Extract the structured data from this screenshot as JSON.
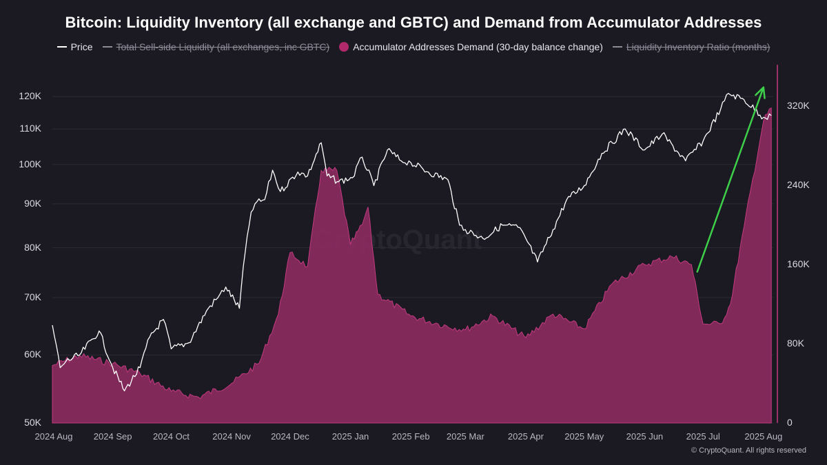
{
  "chart_data": {
    "type": "line",
    "title": "Bitcoin: Liquidity Inventory (all exchange and GBTC) and Demand from Accumulator Addresses",
    "legend": [
      {
        "name": "Price",
        "kind": "line",
        "color": "#ffffff",
        "hidden": false
      },
      {
        "name": "Total Sell-side Liquidity (all exchanges, inc GBTC)",
        "kind": "line",
        "color": "#8e8b99",
        "hidden": true
      },
      {
        "name": "Accumulator Addresses Demand (30-day balance change)",
        "kind": "dot",
        "color": "#b02a6b",
        "hidden": false
      },
      {
        "name": "Liquidity Inventory Ratio (months)",
        "kind": "line",
        "color": "#8e8b99",
        "hidden": true
      }
    ],
    "legend_position": "top-center",
    "x_tick_labels": [
      "2024 Aug",
      "2024 Sep",
      "2024 Oct",
      "2024 Nov",
      "2024 Dec",
      "2025 Jan",
      "2025 Feb",
      "2025 Mar",
      "2025 Apr",
      "2025 May",
      "2025 Jun",
      "2025 Jul",
      "2025 Aug"
    ],
    "y_left": {
      "scale": "log",
      "range": [
        50000,
        125000
      ],
      "tick_values": [
        50000,
        60000,
        70000,
        80000,
        90000,
        100000,
        110000,
        120000
      ],
      "tick_labels": [
        "50K",
        "60K",
        "70K",
        "80K",
        "90K",
        "100K",
        "110K",
        "120K"
      ]
    },
    "y_right": {
      "scale": "linear",
      "range": [
        0,
        345000
      ],
      "tick_values": [
        0,
        80000,
        160000,
        240000,
        320000
      ],
      "tick_labels": [
        "0",
        "80K",
        "160K",
        "240K",
        "320K"
      ]
    },
    "grid": "horizontal",
    "colors": {
      "price": "#ffffff",
      "demand_fill": "#8a2a5e",
      "demand_edge": "#c23a80",
      "arrow": "#3ecf4a",
      "background": "#1b1a22"
    },
    "series": [
      {
        "name": "Price",
        "axis": "left",
        "x": [
          "2024-08-01",
          "2024-08-05",
          "2024-08-08",
          "2024-08-15",
          "2024-08-25",
          "2024-09-01",
          "2024-09-07",
          "2024-09-15",
          "2024-09-20",
          "2024-09-27",
          "2024-10-01",
          "2024-10-10",
          "2024-10-20",
          "2024-10-25",
          "2024-10-29",
          "2024-11-05",
          "2024-11-07",
          "2024-11-11",
          "2024-11-13",
          "2024-11-18",
          "2024-11-22",
          "2024-11-26",
          "2024-12-05",
          "2024-12-10",
          "2024-12-17",
          "2024-12-20",
          "2024-12-26",
          "2025-01-02",
          "2025-01-07",
          "2025-01-13",
          "2025-01-20",
          "2025-01-27",
          "2025-02-01",
          "2025-02-10",
          "2025-02-20",
          "2025-02-26",
          "2025-03-01",
          "2025-03-10",
          "2025-03-20",
          "2025-03-28",
          "2025-04-01",
          "2025-04-07",
          "2025-04-15",
          "2025-04-22",
          "2025-05-01",
          "2025-05-10",
          "2025-05-22",
          "2025-06-01",
          "2025-06-10",
          "2025-06-22",
          "2025-07-01",
          "2025-07-10",
          "2025-07-14",
          "2025-07-22",
          "2025-08-01",
          "2025-08-05"
        ],
        "y": [
          65000,
          58000,
          59000,
          60000,
          64000,
          58000,
          54500,
          58000,
          63000,
          66000,
          61000,
          62000,
          68000,
          70000,
          72000,
          68000,
          76000,
          88000,
          90000,
          91000,
          98500,
          93000,
          98000,
          97000,
          106000,
          97000,
          95500,
          96500,
          102000,
          94500,
          104000,
          101000,
          100500,
          98000,
          96000,
          85000,
          84000,
          82000,
          85000,
          84500,
          82000,
          77000,
          84000,
          91000,
          94500,
          103000,
          110000,
          104000,
          108500,
          101000,
          106500,
          116000,
          121000,
          119000,
          113500,
          114000
        ]
      },
      {
        "name": "Accumulator Addresses Demand (30-day balance change)",
        "axis": "right",
        "x": [
          "2024-08-01",
          "2024-08-15",
          "2024-09-01",
          "2024-09-15",
          "2024-10-01",
          "2024-10-15",
          "2024-11-01",
          "2024-11-15",
          "2024-11-25",
          "2024-12-01",
          "2024-12-10",
          "2024-12-17",
          "2024-12-25",
          "2025-01-01",
          "2025-01-07",
          "2025-01-10",
          "2025-01-15",
          "2025-02-01",
          "2025-02-15",
          "2025-03-01",
          "2025-03-15",
          "2025-04-01",
          "2025-04-15",
          "2025-05-01",
          "2025-05-15",
          "2025-06-01",
          "2025-06-15",
          "2025-06-25",
          "2025-07-01",
          "2025-07-10",
          "2025-07-15",
          "2025-07-22",
          "2025-08-01",
          "2025-08-05"
        ],
        "y": [
          58000,
          68000,
          60000,
          50000,
          32000,
          26000,
          40000,
          60000,
          110000,
          172000,
          158000,
          255000,
          255000,
          180000,
          200000,
          218000,
          130000,
          108000,
          100000,
          94000,
          108000,
          86000,
          110000,
          95000,
          140000,
          160000,
          168000,
          160000,
          100000,
          100000,
          120000,
          198000,
          305000,
          318000
        ]
      }
    ],
    "annotation": {
      "type": "arrow",
      "color": "#3ecf4a",
      "from": {
        "x": "2025-06-28",
        "y": 75000
      },
      "to": {
        "x": "2025-08-01",
        "y": 123000
      },
      "axis": "left"
    },
    "watermark": "CryptoQuant",
    "copyright": "© CryptoQuant. All rights reserved"
  }
}
